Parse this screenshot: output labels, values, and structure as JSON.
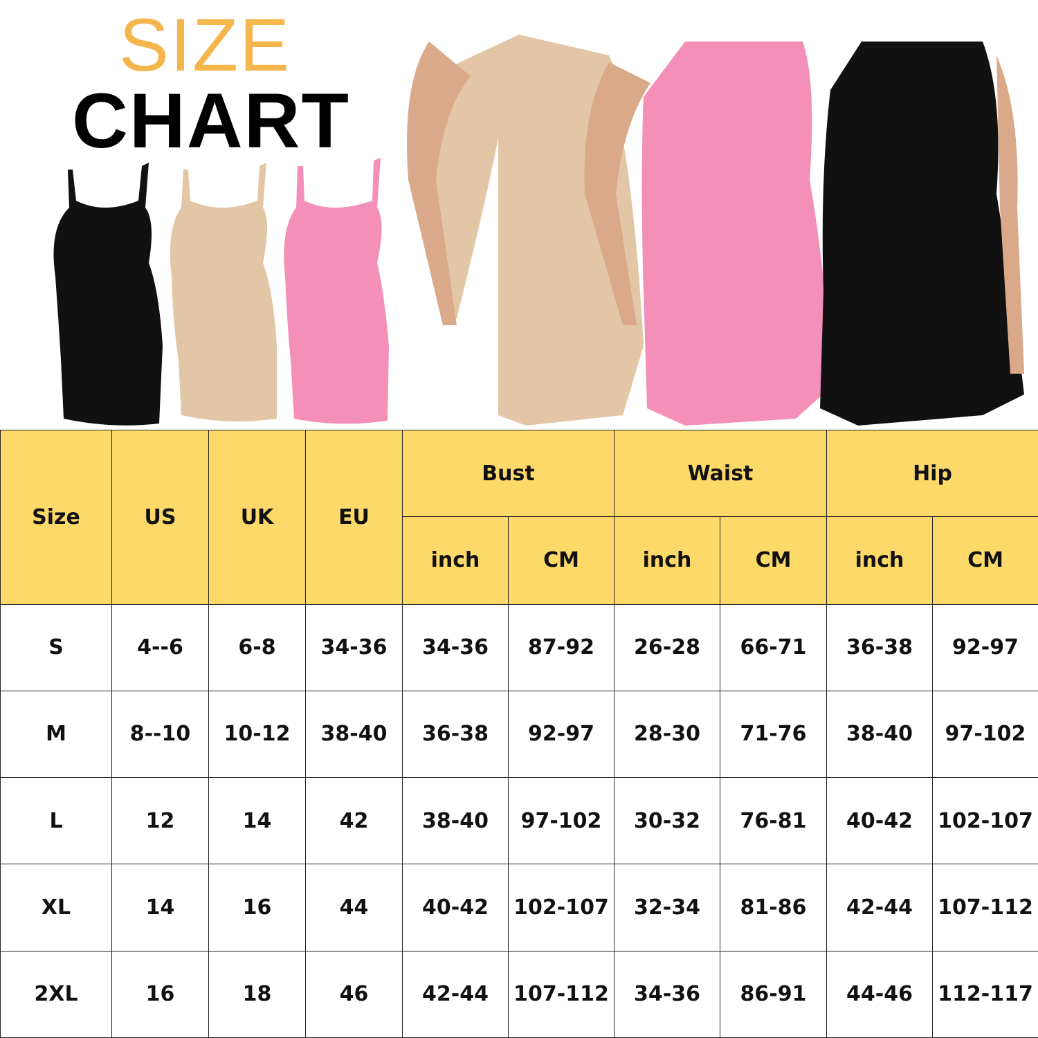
{
  "title": {
    "line1": "SIZE",
    "line2": "CHART"
  },
  "colors": {
    "header_bg": "#fdd96a",
    "title_orange": "#f4b54a",
    "dress_nude": "#e3c6a6",
    "dress_pink": "#f48fb8",
    "dress_black": "#111111"
  },
  "product_images": [
    "black-dress",
    "nude-dress",
    "pink-dress",
    "model-nude",
    "model-pink",
    "model-black"
  ],
  "table": {
    "headers": {
      "size": "Size",
      "us": "US",
      "uk": "UK",
      "eu": "EU",
      "bust": "Bust",
      "waist": "Waist",
      "hip": "Hip",
      "inch": "inch",
      "cm": "CM"
    },
    "rows": [
      [
        "S",
        "4--6",
        "6-8",
        "34-36",
        "34-36",
        "87-92",
        "26-28",
        "66-71",
        "36-38",
        "92-97"
      ],
      [
        "M",
        "8--10",
        "10-12",
        "38-40",
        "36-38",
        "92-97",
        "28-30",
        "71-76",
        "38-40",
        "97-102"
      ],
      [
        "L",
        "12",
        "14",
        "42",
        "38-40",
        "97-102",
        "30-32",
        "76-81",
        "40-42",
        "102-107"
      ],
      [
        "XL",
        "14",
        "16",
        "44",
        "40-42",
        "102-107",
        "32-34",
        "81-86",
        "42-44",
        "107-112"
      ],
      [
        "2XL",
        "16",
        "18",
        "46",
        "42-44",
        "107-112",
        "34-36",
        "86-91",
        "44-46",
        "112-117"
      ]
    ]
  }
}
